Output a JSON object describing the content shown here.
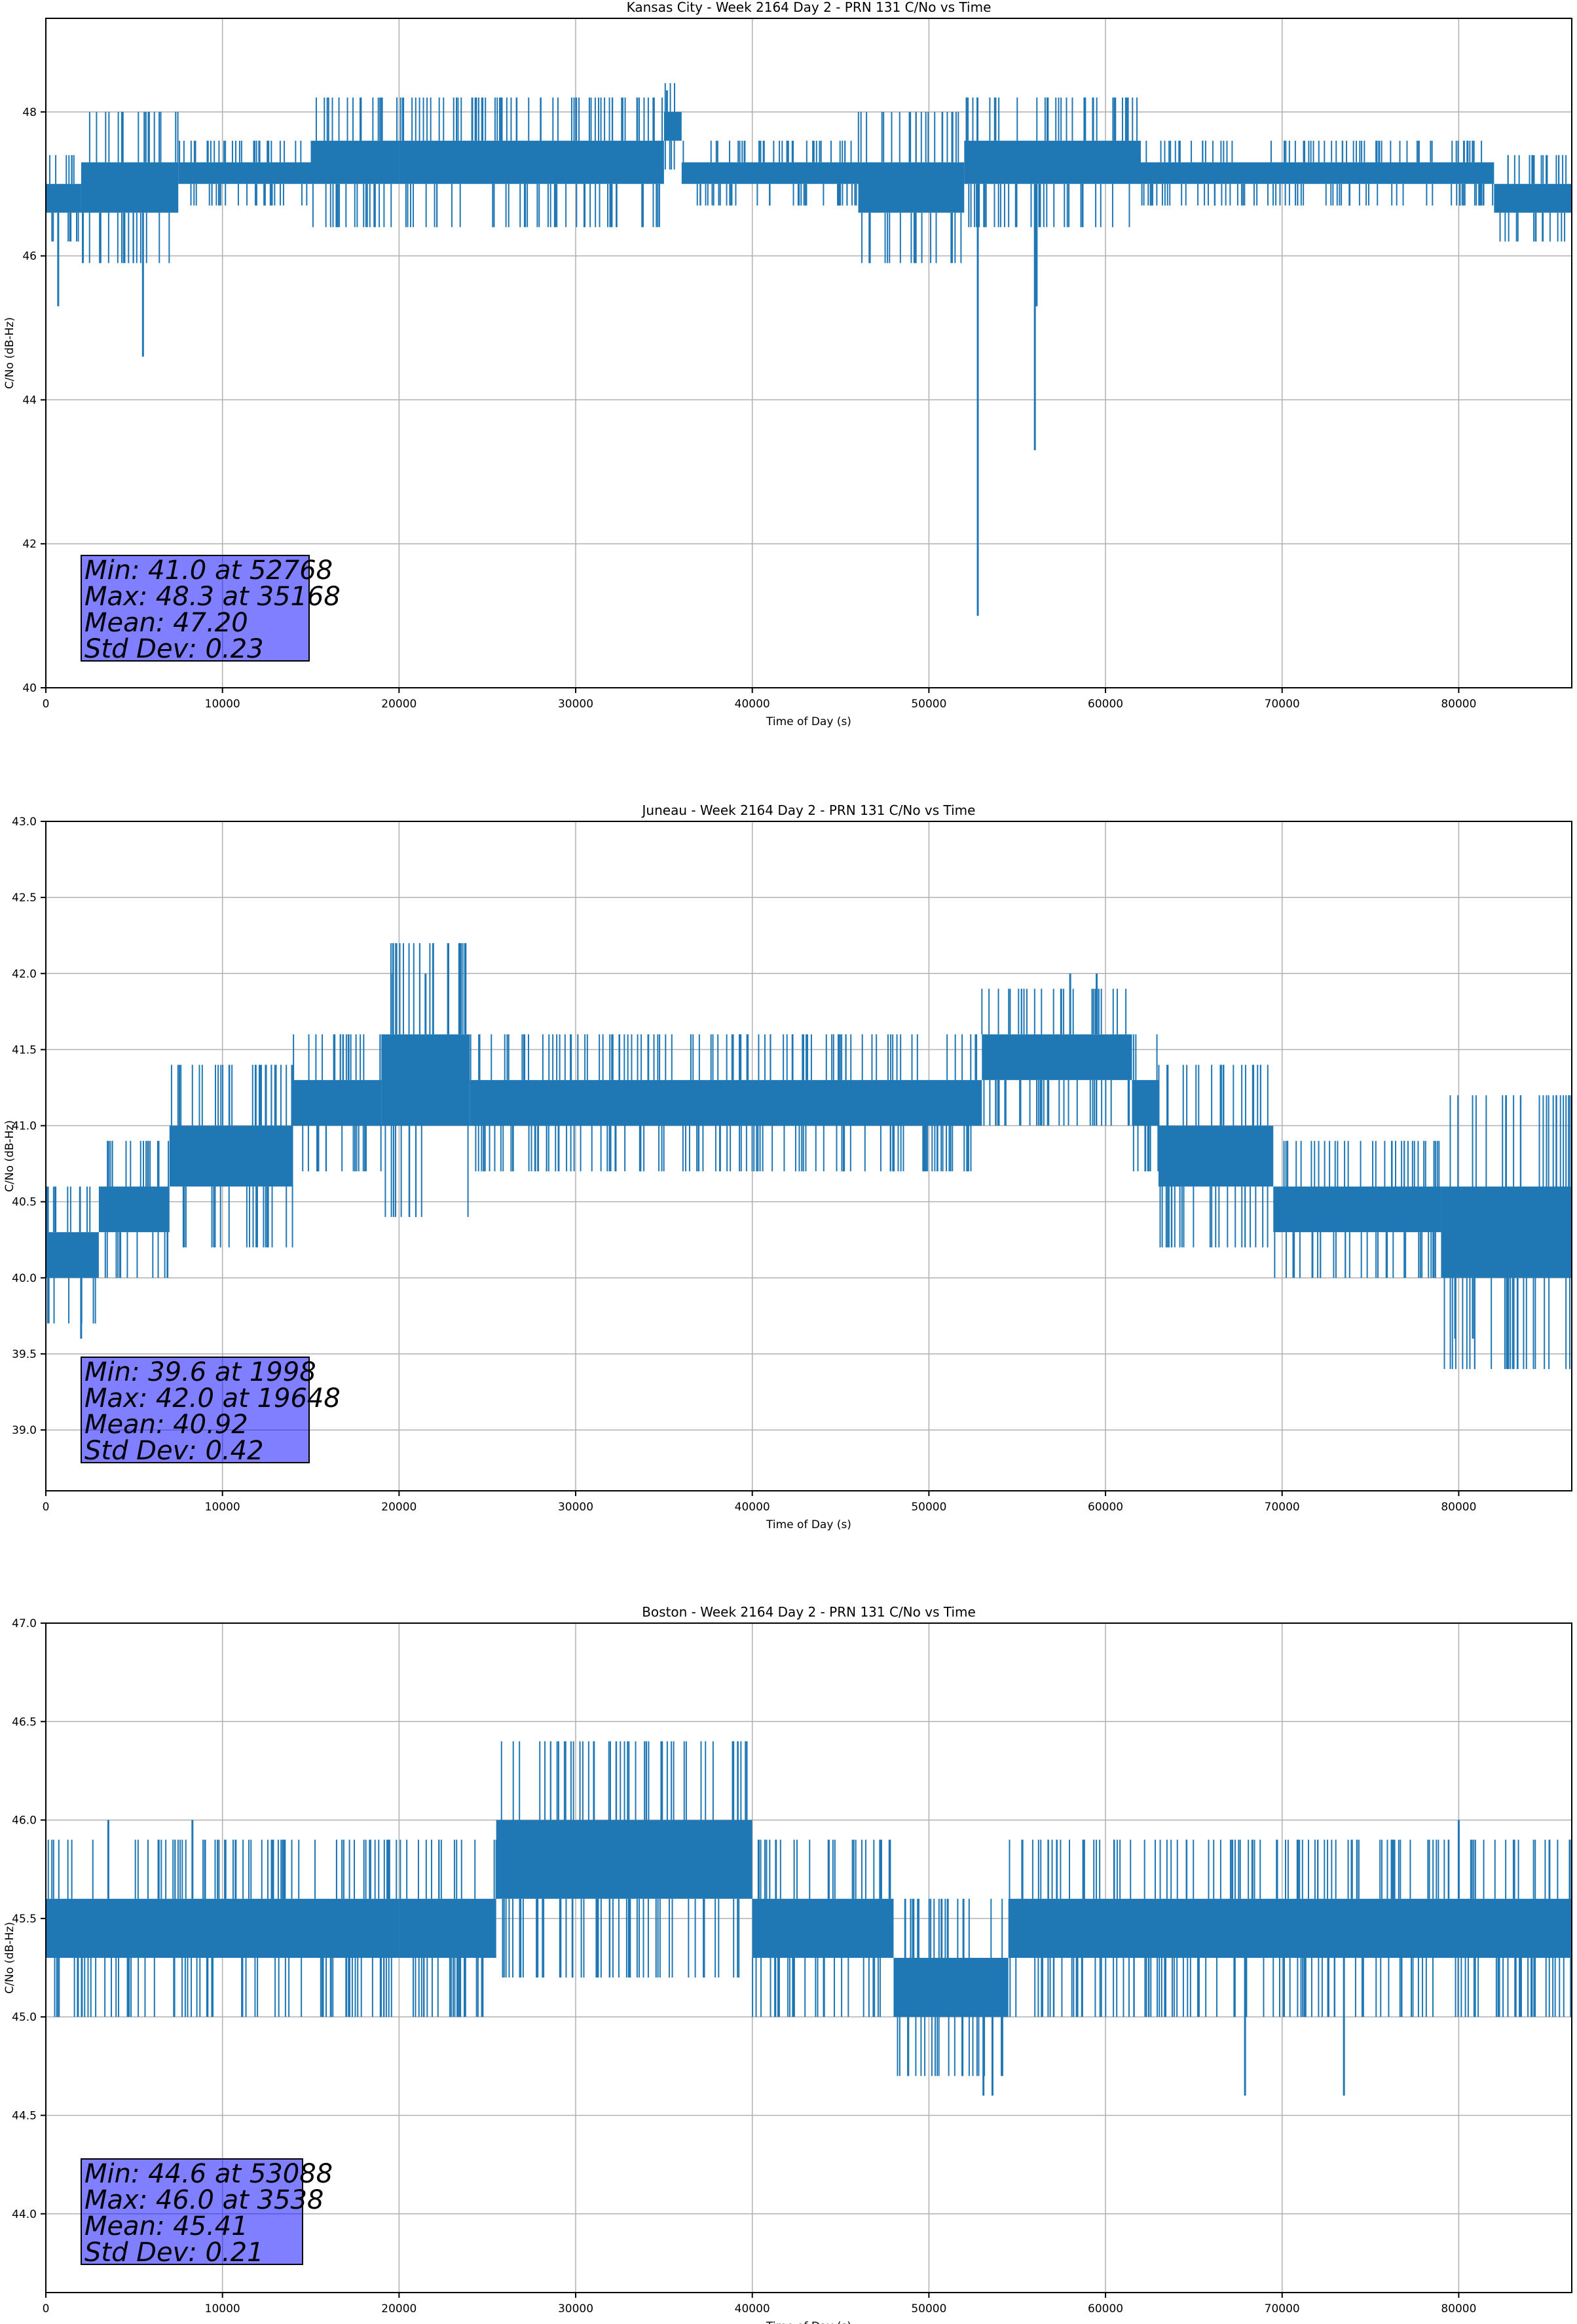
{
  "colors": {
    "series": "#1f77b4",
    "stats_box": "#8080ff",
    "grid": "#b0b0b0"
  },
  "chart_data": [
    {
      "type": "line",
      "title": "Kansas City - Week 2164 Day 2 - PRN 131 C/No vs Time",
      "xlabel": "Time of Day (s)",
      "ylabel": "C/No (dB-Hz)",
      "xlim": [
        0,
        86400
      ],
      "ylim": [
        40,
        49.3
      ],
      "xticks": [
        0,
        10000,
        20000,
        30000,
        40000,
        50000,
        60000,
        70000,
        80000
      ],
      "yticks": [
        40,
        42,
        44,
        46,
        48
      ],
      "ytick_labels": [
        "40",
        "42",
        "44",
        "46",
        "48"
      ],
      "grid": true,
      "series": [
        {
          "bands": [
            {
              "x": [
                0,
                2000
              ],
              "lo": 46.6,
              "hi": 47.0
            },
            {
              "x": [
                2000,
                7500
              ],
              "lo": 46.6,
              "hi": 47.3
            },
            {
              "x": [
                7500,
                15000
              ],
              "lo": 47.0,
              "hi": 47.3
            },
            {
              "x": [
                15000,
                20000
              ],
              "lo": 47.0,
              "hi": 47.6
            },
            {
              "x": [
                20000,
                35000
              ],
              "lo": 47.0,
              "hi": 47.6
            },
            {
              "x": [
                35000,
                36000
              ],
              "lo": 47.6,
              "hi": 48.0
            },
            {
              "x": [
                36000,
                46000
              ],
              "lo": 47.0,
              "hi": 47.3
            },
            {
              "x": [
                46000,
                52000
              ],
              "lo": 46.6,
              "hi": 47.3
            },
            {
              "x": [
                52000,
                62000
              ],
              "lo": 47.0,
              "hi": 47.6
            },
            {
              "x": [
                62000,
                82000
              ],
              "lo": 47.0,
              "hi": 47.3
            },
            {
              "x": [
                82000,
                86400
              ],
              "lo": 46.6,
              "hi": 47.0
            }
          ],
          "spikes": [
            {
              "x": 700,
              "y": 45.3
            },
            {
              "x": 5500,
              "y": 44.6
            },
            {
              "x": 35168,
              "y": 48.3
            },
            {
              "x": 52768,
              "y": 41.0
            },
            {
              "x": 56000,
              "y": 43.3
            },
            {
              "x": 56100,
              "y": 45.3
            }
          ]
        }
      ],
      "stats": [
        "Min: 41.0 at 52768",
        "Max: 48.3 at 35168",
        "Mean: 47.20",
        "Std Dev: 0.23"
      ]
    },
    {
      "type": "line",
      "title": "Juneau - Week 2164 Day 2 - PRN 131 C/No vs Time",
      "xlabel": "Time of Day (s)",
      "ylabel": "C/No (dB-Hz)",
      "xlim": [
        0,
        86400
      ],
      "ylim": [
        38.6,
        43.0
      ],
      "xticks": [
        0,
        10000,
        20000,
        30000,
        40000,
        50000,
        60000,
        70000,
        80000
      ],
      "yticks": [
        39.0,
        39.5,
        40.0,
        40.5,
        41.0,
        41.5,
        42.0,
        42.5,
        43.0
      ],
      "ytick_labels": [
        "39.0",
        "39.5",
        "40.0",
        "40.5",
        "41.0",
        "41.5",
        "42.0",
        "42.5",
        "43.0"
      ],
      "grid": true,
      "series": [
        {
          "bands": [
            {
              "x": [
                0,
                3000
              ],
              "lo": 40.0,
              "hi": 40.3
            },
            {
              "x": [
                3000,
                7000
              ],
              "lo": 40.3,
              "hi": 40.6
            },
            {
              "x": [
                7000,
                14000
              ],
              "lo": 40.6,
              "hi": 41.0
            },
            {
              "x": [
                14000,
                19000
              ],
              "lo": 41.0,
              "hi": 41.3
            },
            {
              "x": [
                19000,
                24000
              ],
              "lo": 41.0,
              "hi": 41.6
            },
            {
              "x": [
                24000,
                53000
              ],
              "lo": 41.0,
              "hi": 41.3
            },
            {
              "x": [
                53000,
                61500
              ],
              "lo": 41.3,
              "hi": 41.6
            },
            {
              "x": [
                61500,
                63000
              ],
              "lo": 41.0,
              "hi": 41.3
            },
            {
              "x": [
                63000,
                69500
              ],
              "lo": 40.6,
              "hi": 41.0
            },
            {
              "x": [
                69500,
                79000
              ],
              "lo": 40.3,
              "hi": 40.6
            },
            {
              "x": [
                79000,
                86400
              ],
              "lo": 40.0,
              "hi": 40.6
            }
          ],
          "spikes": [
            {
              "x": 1998,
              "y": 39.6
            },
            {
              "x": 19648,
              "y": 42.0
            },
            {
              "x": 21500,
              "y": 42.0
            },
            {
              "x": 58000,
              "y": 42.0
            },
            {
              "x": 59500,
              "y": 42.0
            },
            {
              "x": 79800,
              "y": 39.6
            },
            {
              "x": 80800,
              "y": 39.6
            }
          ]
        }
      ],
      "stats": [
        "Min: 39.6 at 1998",
        "Max: 42.0 at 19648",
        "Mean: 40.92",
        "Std Dev: 0.42"
      ]
    },
    {
      "type": "line",
      "title": "Boston - Week 2164 Day 2 - PRN 131 C/No vs Time",
      "xlabel": "Time of Day (s)",
      "ylabel": "C/No (dB-Hz)",
      "xlim": [
        0,
        86400
      ],
      "ylim": [
        43.6,
        47.0
      ],
      "xticks": [
        0,
        10000,
        20000,
        30000,
        40000,
        50000,
        60000,
        70000,
        80000
      ],
      "yticks": [
        44.0,
        44.5,
        45.0,
        45.5,
        46.0,
        46.5,
        47.0
      ],
      "ytick_labels": [
        "44.0",
        "44.5",
        "45.0",
        "45.5",
        "46.0",
        "46.5",
        "47.0"
      ],
      "grid": true,
      "series": [
        {
          "bands": [
            {
              "x": [
                0,
                20000
              ],
              "lo": 45.3,
              "hi": 45.6
            },
            {
              "x": [
                20000,
                25500
              ],
              "lo": 45.3,
              "hi": 45.6
            },
            {
              "x": [
                25500,
                40000
              ],
              "lo": 45.6,
              "hi": 46.0
            },
            {
              "x": [
                40000,
                48000
              ],
              "lo": 45.3,
              "hi": 45.6
            },
            {
              "x": [
                48000,
                54500
              ],
              "lo": 45.0,
              "hi": 45.3
            },
            {
              "x": [
                54500,
                86400
              ],
              "lo": 45.3,
              "hi": 45.6
            }
          ],
          "spikes": [
            {
              "x": 3538,
              "y": 46.0
            },
            {
              "x": 8300,
              "y": 46.0
            },
            {
              "x": 53088,
              "y": 44.6
            },
            {
              "x": 53600,
              "y": 44.6
            },
            {
              "x": 67900,
              "y": 44.6
            },
            {
              "x": 73500,
              "y": 44.6
            },
            {
              "x": 80000,
              "y": 46.0
            }
          ]
        }
      ],
      "stats": [
        "Min: 44.6 at 53088",
        "Max: 46.0 at 3538",
        "Mean: 45.41",
        "Std Dev: 0.21"
      ]
    }
  ]
}
